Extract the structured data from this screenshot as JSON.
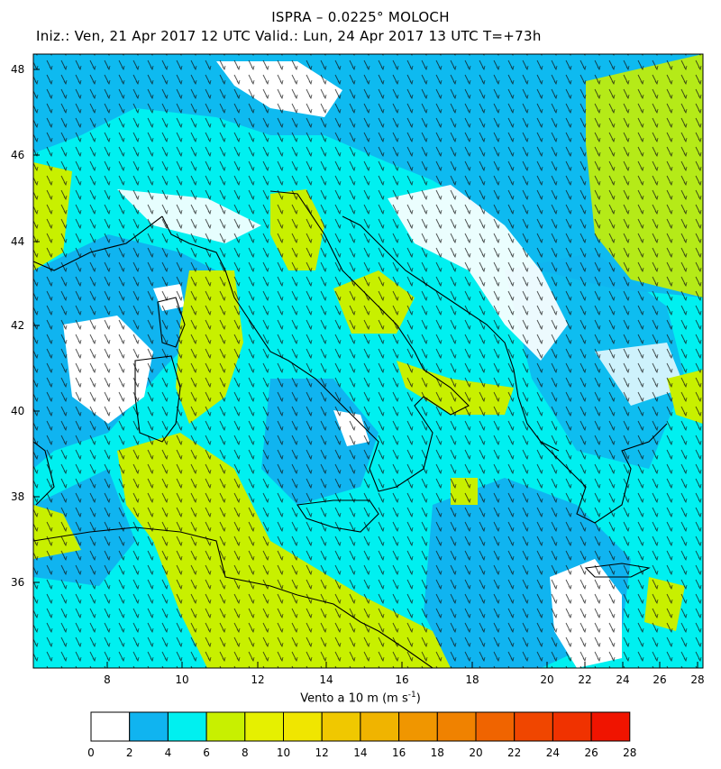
{
  "header": {
    "title": "ISPRA – 0.0225° MOLOCH",
    "subtitle": "Iniz.: Ven, 21 Apr 2017   12 UTC   Valid.: Lun, 24 Apr 2017   13 UTC   T=+73h"
  },
  "map": {
    "lat_ticks": [
      "48",
      "46",
      "44",
      "42",
      "40",
      "38",
      "36"
    ],
    "lon_ticks": [
      "8",
      "10",
      "12",
      "14",
      "16",
      "18",
      "20",
      "22",
      "24",
      "26",
      "28"
    ]
  },
  "legend": {
    "label": "Vento a 10 m (m s",
    "label_sup": "-1",
    "label_end": ")",
    "ticks": [
      "0",
      "2",
      "4",
      "6",
      "8",
      "10",
      "12",
      "14",
      "16",
      "18",
      "20",
      "22",
      "24",
      "26",
      "28"
    ],
    "colors": [
      "#ffffff",
      "#10b4f0",
      "#00f0f0",
      "#c8f000",
      "#e6f000",
      "#f0e600",
      "#f0c800",
      "#f0b400",
      "#f09600",
      "#f08200",
      "#f06400",
      "#f04600",
      "#f03200",
      "#f01400"
    ]
  },
  "colors": {
    "white": "#ffffff",
    "blue": "#10b4f0",
    "cyan": "#00f0f0",
    "yellow_green": "#c8f000",
    "yellow": "#e6f000"
  }
}
